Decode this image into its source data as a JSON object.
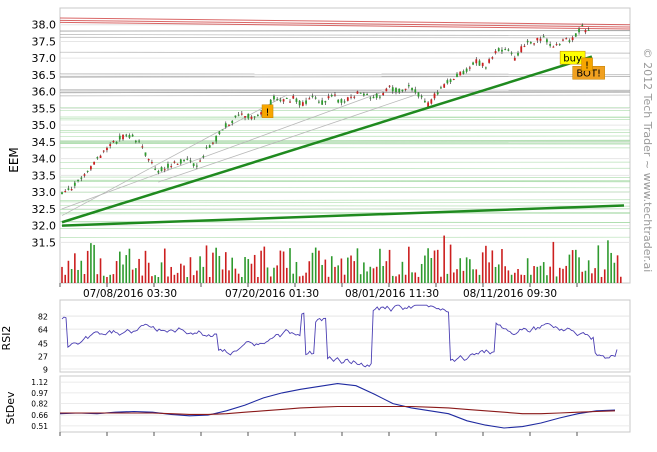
{
  "watermark": "© 2012 Tech Trader ~ www.techtrader.ai",
  "colors": {
    "up": "#2e9a2e",
    "down": "#cc1f1f",
    "trend": "#1f8a1f",
    "rsi": "#4b3fb3",
    "stdev_fast": "#1f2aa0",
    "stdev_slow": "#8b1a1a",
    "buy_flag": "#ffff00",
    "bot_flag": "#f0a020",
    "mark_flag": "#f7a600"
  },
  "chart_data": [
    {
      "type": "candlestick",
      "ylabel": "EEM",
      "ylim": [
        31.0,
        38.2
      ],
      "yticks": [
        "38.0",
        "37.5",
        "37.0",
        "36.5",
        "36.0",
        "35.5",
        "35.0",
        "34.5",
        "34.0",
        "33.5",
        "33.0",
        "32.5",
        "32.0",
        "31.5"
      ],
      "x_date_labels": [
        "07/08/2016 03:30",
        "07/20/2016 01:30",
        "08/01/2016 11:30",
        "08/11/2016 09:30"
      ],
      "close_path": [
        [
          0,
          33.0
        ],
        [
          3,
          33.1
        ],
        [
          6,
          33.4
        ],
        [
          9,
          33.7
        ],
        [
          12,
          34.1
        ],
        [
          15,
          34.4
        ],
        [
          18,
          34.6
        ],
        [
          21,
          34.7
        ],
        [
          24,
          34.5
        ],
        [
          27,
          34.0
        ],
        [
          30,
          33.6
        ],
        [
          33,
          33.8
        ],
        [
          36,
          33.9
        ],
        [
          39,
          34.0
        ],
        [
          42,
          33.8
        ],
        [
          45,
          34.3
        ],
        [
          48,
          34.6
        ],
        [
          51,
          35.0
        ],
        [
          54,
          35.2
        ],
        [
          57,
          35.3
        ],
        [
          60,
          35.2
        ],
        [
          63,
          35.4
        ],
        [
          66,
          35.8
        ],
        [
          69,
          35.7
        ],
        [
          72,
          35.8
        ],
        [
          75,
          35.6
        ],
        [
          78,
          35.8
        ],
        [
          81,
          35.7
        ],
        [
          84,
          35.9
        ],
        [
          87,
          35.7
        ],
        [
          90,
          35.8
        ],
        [
          93,
          36.0
        ],
        [
          96,
          35.8
        ],
        [
          99,
          35.9
        ],
        [
          102,
          36.1
        ],
        [
          105,
          36.0
        ],
        [
          108,
          36.2
        ],
        [
          111,
          35.9
        ],
        [
          114,
          35.6
        ],
        [
          117,
          36.0
        ],
        [
          120,
          36.3
        ],
        [
          123,
          36.5
        ],
        [
          126,
          36.6
        ],
        [
          129,
          36.9
        ],
        [
          132,
          36.8
        ],
        [
          135,
          37.2
        ],
        [
          138,
          37.3
        ],
        [
          141,
          37.0
        ],
        [
          144,
          37.4
        ],
        [
          147,
          37.5
        ],
        [
          150,
          37.6
        ],
        [
          153,
          37.3
        ],
        [
          156,
          37.5
        ],
        [
          159,
          37.6
        ],
        [
          162,
          37.9
        ],
        [
          165,
          37.7
        ]
      ],
      "annotations": [
        "buy",
        "BOT!",
        "!",
        "!"
      ],
      "trendlines": [
        {
          "from": [
            0,
            32.1
          ],
          "to": [
            165,
            37.05
          ]
        },
        {
          "from": [
            0,
            32.0
          ],
          "to": [
            175,
            32.6
          ]
        }
      ]
    },
    {
      "type": "line",
      "ylabel": "RSI2",
      "ylim": [
        9,
        100
      ],
      "yticks": [
        "82",
        "64",
        "45",
        "27",
        "9"
      ]
    },
    {
      "type": "line",
      "ylabel": "StDev",
      "ylim": [
        0.48,
        1.15
      ],
      "yticks": [
        "1.12",
        "0.97",
        "0.82",
        "0.66",
        "0.51"
      ],
      "series": [
        {
          "values": [
            0.68,
            0.69,
            0.68,
            0.7,
            0.71,
            0.7,
            0.67,
            0.65,
            0.66,
            0.72,
            0.8,
            0.9,
            0.97,
            1.02,
            1.06,
            1.1,
            1.07,
            0.95,
            0.82,
            0.76,
            0.72,
            0.68,
            0.58,
            0.52,
            0.48,
            0.5,
            0.55,
            0.62,
            0.68,
            0.72,
            0.73
          ]
        },
        {
          "values": [
            0.69,
            0.69,
            0.69,
            0.69,
            0.69,
            0.69,
            0.68,
            0.67,
            0.67,
            0.68,
            0.7,
            0.72,
            0.74,
            0.76,
            0.77,
            0.78,
            0.78,
            0.78,
            0.78,
            0.78,
            0.77,
            0.76,
            0.74,
            0.72,
            0.7,
            0.68,
            0.68,
            0.69,
            0.7,
            0.71,
            0.72
          ]
        }
      ]
    }
  ]
}
